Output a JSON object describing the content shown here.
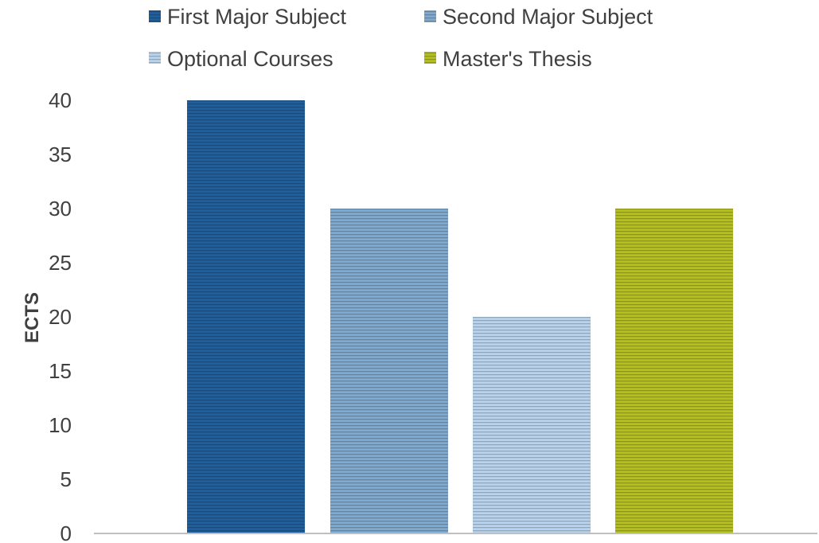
{
  "chart_data": {
    "type": "bar",
    "title": "",
    "xlabel": "",
    "ylabel": "ECTS",
    "ylim": [
      0,
      40
    ],
    "yticks": [
      0,
      5,
      10,
      15,
      20,
      25,
      30,
      35,
      40
    ],
    "grid": false,
    "legend_position": "top",
    "series": [
      {
        "name": "First Major Subject",
        "values": [
          40
        ],
        "color": "#1f5f9e"
      },
      {
        "name": "Second Major Subject",
        "values": [
          30
        ],
        "color": "#7fa9cf"
      },
      {
        "name": "Optional Courses",
        "values": [
          20
        ],
        "color": "#b7d3ee"
      },
      {
        "name": "Master's Thesis",
        "values": [
          30
        ],
        "color": "#b5bf1e"
      }
    ]
  }
}
